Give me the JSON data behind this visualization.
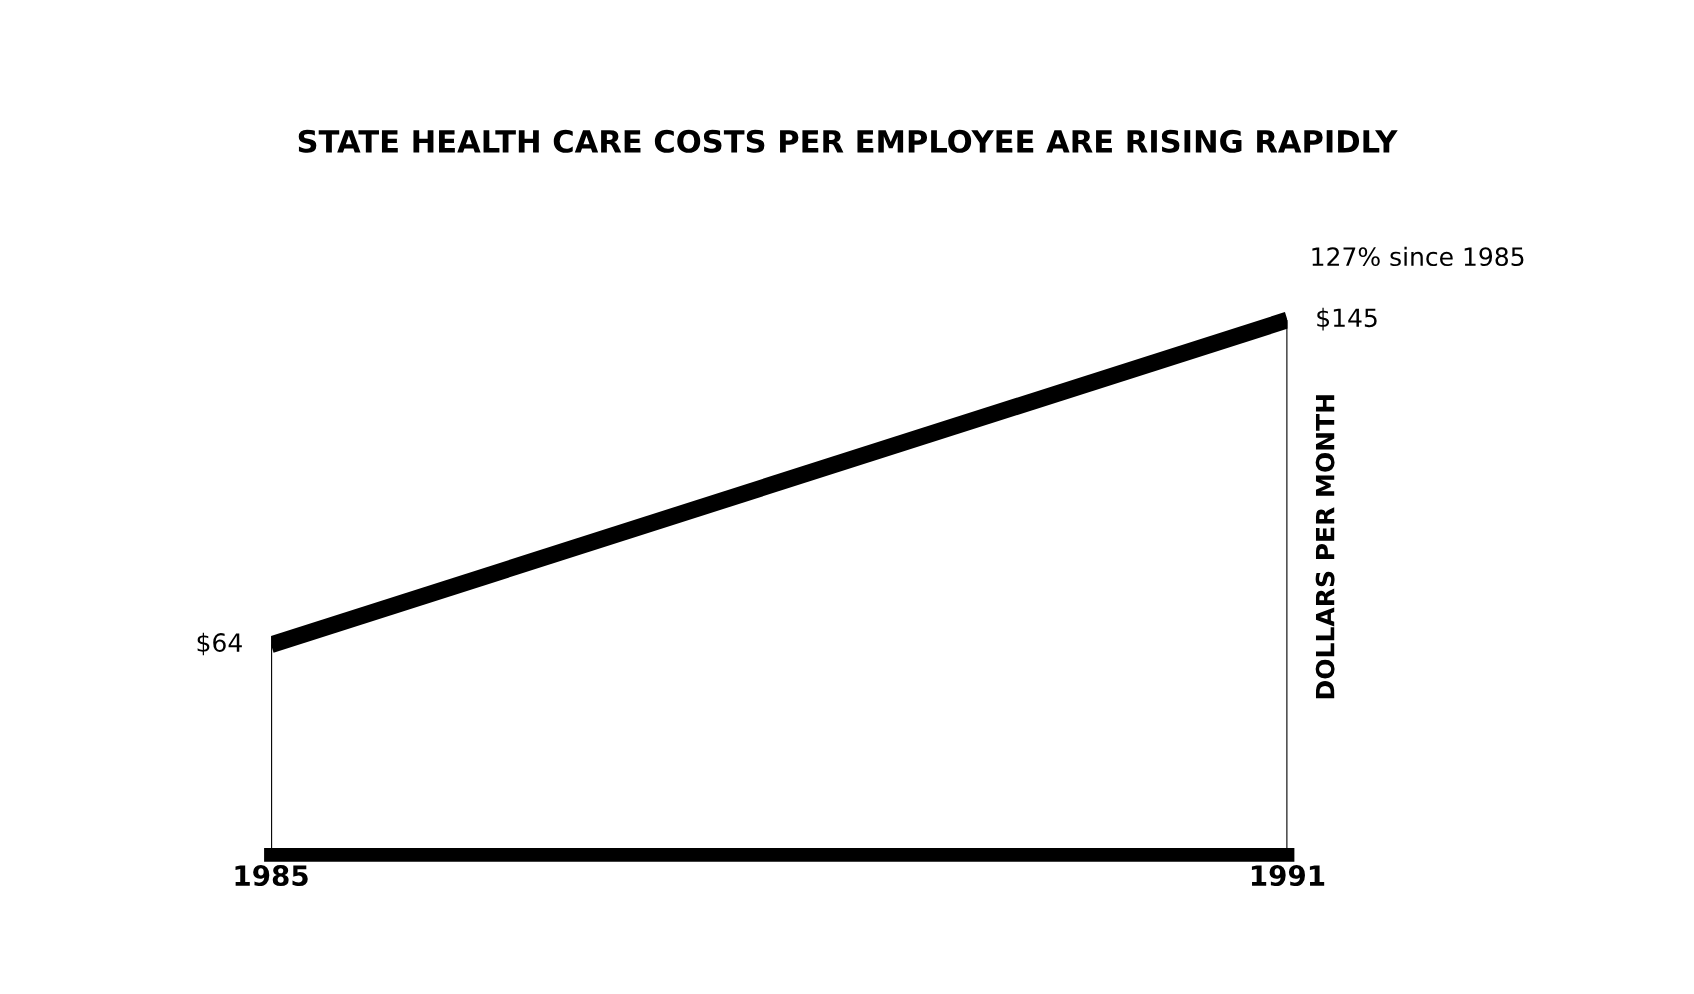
{
  "chart_data": {
    "type": "line",
    "title": "STATE HEALTH CARE COSTS PER EMPLOYEE ARE RISING RAPIDLY",
    "ylabel": "DOLLARS PER MONTH",
    "x": [
      1985,
      1991
    ],
    "xlim": [
      1985,
      1991
    ],
    "xticks": [
      1985,
      1991
    ],
    "series": [
      {
        "color": "#000000",
        "values": [
          64,
          145
        ],
        "value_labels": [
          "$64",
          "$145"
        ]
      }
    ],
    "annotations": [
      {
        "text": "127% since 1985",
        "x": 1991,
        "y": 145
      }
    ],
    "tick_labels": "x",
    "grid": false,
    "legend": false,
    "marker": "none",
    "line_style": "solid"
  }
}
